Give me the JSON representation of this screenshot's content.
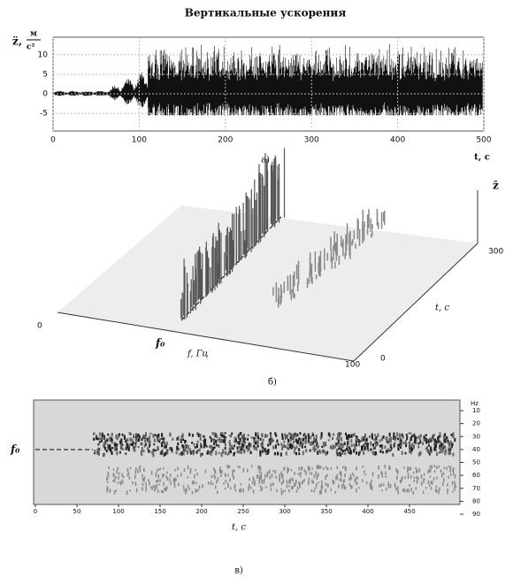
{
  "panel_a": {
    "title": "Вертикальные ускорения",
    "y_symbol": "z̈,",
    "y_unit_top": "м",
    "y_unit_bottom": "c²",
    "x_label": "t, c",
    "caption": "а)",
    "xlim": [
      0,
      500
    ],
    "ylim": [
      -9.5,
      14.5
    ],
    "xticks": [
      0,
      100,
      200,
      300,
      400,
      500
    ],
    "yticks": [
      -5,
      0,
      5,
      10
    ]
  },
  "panel_b": {
    "z_label": "z̄",
    "t_max": "300",
    "t_label": "t, c",
    "f_min": "0",
    "f0_label": "f₀",
    "f_label": "f, Гц",
    "f_max": "100",
    "t_min": "0",
    "caption": "б)"
  },
  "panel_c": {
    "unit_label": "Hz",
    "f0_label": "f₀",
    "x_label": "t, c",
    "caption": "в)",
    "xlim": [
      0,
      500
    ],
    "ylim": [
      10,
      90
    ],
    "xticks": [
      0,
      50,
      100,
      150,
      200,
      250,
      300,
      350,
      400,
      450
    ],
    "yticks": [
      10,
      20,
      30,
      40,
      50,
      60,
      70,
      80,
      90
    ]
  }
}
